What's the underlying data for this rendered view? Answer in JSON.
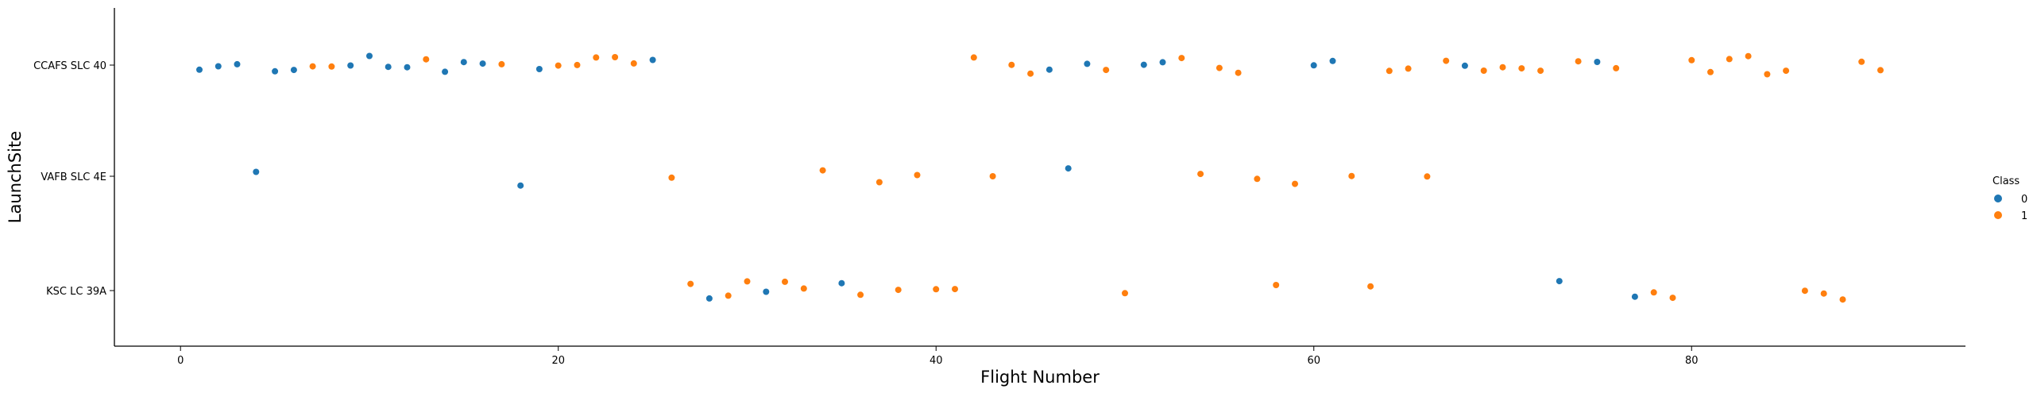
{
  "chart_data": {
    "type": "scatter",
    "xlabel": "Flight Number",
    "ylabel": "LaunchSite",
    "xlim": [
      -3.5,
      94.5
    ],
    "x_ticks": [
      0,
      20,
      40,
      60,
      80
    ],
    "categories": [
      "CCAFS SLC 40",
      "VAFB SLC 4E",
      "KSC LC 39A"
    ],
    "grid": false,
    "legend": {
      "title": "Class",
      "placement": "right",
      "entries": [
        {
          "label": "0",
          "color": "#1f77b4"
        },
        {
          "label": "1",
          "color": "#ff7f0e"
        }
      ]
    },
    "series": [
      {
        "name": "0",
        "color": "#1f77b4",
        "points": [
          {
            "x": 1,
            "y": "CCAFS SLC 40"
          },
          {
            "x": 2,
            "y": "CCAFS SLC 40"
          },
          {
            "x": 3,
            "y": "CCAFS SLC 40"
          },
          {
            "x": 4,
            "y": "VAFB SLC 4E"
          },
          {
            "x": 5,
            "y": "CCAFS SLC 40"
          },
          {
            "x": 6,
            "y": "CCAFS SLC 40"
          },
          {
            "x": 9,
            "y": "CCAFS SLC 40"
          },
          {
            "x": 10,
            "y": "CCAFS SLC 40"
          },
          {
            "x": 11,
            "y": "CCAFS SLC 40"
          },
          {
            "x": 12,
            "y": "CCAFS SLC 40"
          },
          {
            "x": 14,
            "y": "CCAFS SLC 40"
          },
          {
            "x": 15,
            "y": "CCAFS SLC 40"
          },
          {
            "x": 16,
            "y": "CCAFS SLC 40"
          },
          {
            "x": 18,
            "y": "VAFB SLC 4E"
          },
          {
            "x": 19,
            "y": "CCAFS SLC 40"
          },
          {
            "x": 25,
            "y": "CCAFS SLC 40"
          },
          {
            "x": 28,
            "y": "KSC LC 39A"
          },
          {
            "x": 31,
            "y": "KSC LC 39A"
          },
          {
            "x": 35,
            "y": "KSC LC 39A"
          },
          {
            "x": 46,
            "y": "CCAFS SLC 40"
          },
          {
            "x": 47,
            "y": "VAFB SLC 4E"
          },
          {
            "x": 48,
            "y": "CCAFS SLC 40"
          },
          {
            "x": 51,
            "y": "CCAFS SLC 40"
          },
          {
            "x": 52,
            "y": "CCAFS SLC 40"
          },
          {
            "x": 60,
            "y": "CCAFS SLC 40"
          },
          {
            "x": 61,
            "y": "CCAFS SLC 40"
          },
          {
            "x": 68,
            "y": "CCAFS SLC 40"
          },
          {
            "x": 73,
            "y": "KSC LC 39A"
          },
          {
            "x": 75,
            "y": "CCAFS SLC 40"
          },
          {
            "x": 77,
            "y": "KSC LC 39A"
          }
        ]
      },
      {
        "name": "1",
        "color": "#ff7f0e",
        "points": [
          {
            "x": 7,
            "y": "CCAFS SLC 40"
          },
          {
            "x": 8,
            "y": "CCAFS SLC 40"
          },
          {
            "x": 13,
            "y": "CCAFS SLC 40"
          },
          {
            "x": 17,
            "y": "CCAFS SLC 40"
          },
          {
            "x": 20,
            "y": "CCAFS SLC 40"
          },
          {
            "x": 21,
            "y": "CCAFS SLC 40"
          },
          {
            "x": 22,
            "y": "CCAFS SLC 40"
          },
          {
            "x": 23,
            "y": "CCAFS SLC 40"
          },
          {
            "x": 24,
            "y": "CCAFS SLC 40"
          },
          {
            "x": 26,
            "y": "VAFB SLC 4E"
          },
          {
            "x": 27,
            "y": "KSC LC 39A"
          },
          {
            "x": 29,
            "y": "KSC LC 39A"
          },
          {
            "x": 30,
            "y": "KSC LC 39A"
          },
          {
            "x": 32,
            "y": "KSC LC 39A"
          },
          {
            "x": 33,
            "y": "KSC LC 39A"
          },
          {
            "x": 34,
            "y": "VAFB SLC 4E"
          },
          {
            "x": 36,
            "y": "KSC LC 39A"
          },
          {
            "x": 37,
            "y": "VAFB SLC 4E"
          },
          {
            "x": 38,
            "y": "KSC LC 39A"
          },
          {
            "x": 39,
            "y": "VAFB SLC 4E"
          },
          {
            "x": 40,
            "y": "KSC LC 39A"
          },
          {
            "x": 41,
            "y": "KSC LC 39A"
          },
          {
            "x": 42,
            "y": "CCAFS SLC 40"
          },
          {
            "x": 43,
            "y": "VAFB SLC 4E"
          },
          {
            "x": 44,
            "y": "CCAFS SLC 40"
          },
          {
            "x": 45,
            "y": "CCAFS SLC 40"
          },
          {
            "x": 49,
            "y": "CCAFS SLC 40"
          },
          {
            "x": 50,
            "y": "KSC LC 39A"
          },
          {
            "x": 53,
            "y": "CCAFS SLC 40"
          },
          {
            "x": 54,
            "y": "VAFB SLC 4E"
          },
          {
            "x": 55,
            "y": "CCAFS SLC 40"
          },
          {
            "x": 56,
            "y": "CCAFS SLC 40"
          },
          {
            "x": 57,
            "y": "VAFB SLC 4E"
          },
          {
            "x": 58,
            "y": "KSC LC 39A"
          },
          {
            "x": 59,
            "y": "VAFB SLC 4E"
          },
          {
            "x": 62,
            "y": "VAFB SLC 4E"
          },
          {
            "x": 63,
            "y": "KSC LC 39A"
          },
          {
            "x": 64,
            "y": "CCAFS SLC 40"
          },
          {
            "x": 65,
            "y": "CCAFS SLC 40"
          },
          {
            "x": 66,
            "y": "VAFB SLC 4E"
          },
          {
            "x": 67,
            "y": "CCAFS SLC 40"
          },
          {
            "x": 69,
            "y": "CCAFS SLC 40"
          },
          {
            "x": 70,
            "y": "CCAFS SLC 40"
          },
          {
            "x": 71,
            "y": "CCAFS SLC 40"
          },
          {
            "x": 72,
            "y": "CCAFS SLC 40"
          },
          {
            "x": 74,
            "y": "CCAFS SLC 40"
          },
          {
            "x": 76,
            "y": "CCAFS SLC 40"
          },
          {
            "x": 78,
            "y": "KSC LC 39A"
          },
          {
            "x": 79,
            "y": "KSC LC 39A"
          },
          {
            "x": 80,
            "y": "CCAFS SLC 40"
          },
          {
            "x": 81,
            "y": "CCAFS SLC 40"
          },
          {
            "x": 82,
            "y": "CCAFS SLC 40"
          },
          {
            "x": 83,
            "y": "CCAFS SLC 40"
          },
          {
            "x": 84,
            "y": "CCAFS SLC 40"
          },
          {
            "x": 85,
            "y": "CCAFS SLC 40"
          },
          {
            "x": 86,
            "y": "KSC LC 39A"
          },
          {
            "x": 87,
            "y": "KSC LC 39A"
          },
          {
            "x": 88,
            "y": "KSC LC 39A"
          },
          {
            "x": 89,
            "y": "CCAFS SLC 40"
          },
          {
            "x": 90,
            "y": "CCAFS SLC 40"
          }
        ]
      }
    ]
  }
}
